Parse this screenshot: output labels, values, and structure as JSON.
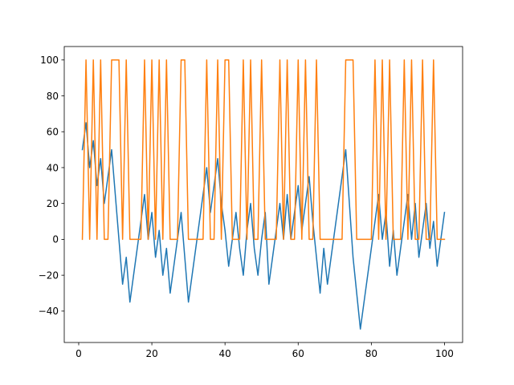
{
  "chart_data": {
    "type": "line",
    "title": "",
    "xlabel": "",
    "ylabel": "",
    "xlim": [
      -3.95,
      104.95
    ],
    "ylim": [
      -57.5,
      107.5
    ],
    "xticks": [
      0,
      20,
      40,
      60,
      80,
      100
    ],
    "yticks": [
      -40,
      -20,
      0,
      20,
      40,
      60,
      80,
      100
    ],
    "grid": false,
    "legend": "none",
    "series": [
      {
        "color": "#1f77b4",
        "x": [
          1,
          2,
          3,
          4,
          5,
          6,
          7,
          8,
          9,
          10,
          11,
          12,
          13,
          14,
          15,
          16,
          17,
          18,
          19,
          20,
          21,
          22,
          23,
          24,
          25,
          26,
          27,
          28,
          29,
          30,
          31,
          32,
          33,
          34,
          35,
          36,
          37,
          38,
          39,
          40,
          41,
          42,
          43,
          44,
          45,
          46,
          47,
          48,
          49,
          50,
          51,
          52,
          53,
          54,
          55,
          56,
          57,
          58,
          59,
          60,
          61,
          62,
          63,
          64,
          65,
          66,
          67,
          68,
          69,
          70,
          71,
          72,
          73,
          74,
          75,
          76,
          77,
          78,
          79,
          80,
          81,
          82,
          83,
          84,
          85,
          86,
          87,
          88,
          89,
          90,
          91,
          92,
          93,
          94,
          95,
          96,
          97,
          98,
          99,
          100
        ],
        "values": [
          50,
          65,
          40,
          55,
          30,
          45,
          20,
          35,
          50,
          25,
          0,
          -25,
          -10,
          -35,
          -20,
          -5,
          10,
          25,
          0,
          15,
          -10,
          5,
          -20,
          -5,
          -30,
          -15,
          0,
          15,
          -10,
          -35,
          -20,
          -5,
          10,
          25,
          40,
          15,
          30,
          45,
          20,
          5,
          -15,
          0,
          15,
          -5,
          -20,
          5,
          20,
          -5,
          -20,
          0,
          15,
          -25,
          -10,
          5,
          20,
          0,
          25,
          0,
          15,
          30,
          5,
          20,
          35,
          10,
          -10,
          -30,
          -5,
          -25,
          -10,
          5,
          20,
          35,
          50,
          20,
          -10,
          -30,
          -50,
          -35,
          -20,
          -5,
          10,
          25,
          0,
          15,
          -15,
          5,
          -20,
          -5,
          10,
          25,
          0,
          20,
          -10,
          5,
          20,
          -5,
          10,
          -15,
          0,
          15
        ]
      },
      {
        "color": "#ff7f0e",
        "x": [
          1,
          2,
          3,
          4,
          5,
          6,
          7,
          8,
          9,
          10,
          11,
          12,
          13,
          14,
          15,
          16,
          17,
          18,
          19,
          20,
          21,
          22,
          23,
          24,
          25,
          26,
          27,
          28,
          29,
          30,
          31,
          32,
          33,
          34,
          35,
          36,
          37,
          38,
          39,
          40,
          41,
          42,
          43,
          44,
          45,
          46,
          47,
          48,
          49,
          50,
          51,
          52,
          53,
          54,
          55,
          56,
          57,
          58,
          59,
          60,
          61,
          62,
          63,
          64,
          65,
          66,
          67,
          68,
          69,
          70,
          71,
          72,
          73,
          74,
          75,
          76,
          77,
          78,
          79,
          80,
          81,
          82,
          83,
          84,
          85,
          86,
          87,
          88,
          89,
          90,
          91,
          92,
          93,
          94,
          95,
          96,
          97,
          98,
          99,
          100
        ],
        "values": [
          0,
          100,
          0,
          100,
          0,
          100,
          0,
          0,
          100,
          100,
          100,
          0,
          100,
          0,
          0,
          0,
          0,
          100,
          0,
          100,
          0,
          100,
          0,
          100,
          0,
          0,
          0,
          100,
          100,
          0,
          0,
          0,
          0,
          0,
          100,
          0,
          0,
          100,
          0,
          100,
          100,
          0,
          0,
          0,
          100,
          0,
          100,
          0,
          0,
          100,
          0,
          0,
          0,
          0,
          100,
          0,
          100,
          0,
          0,
          100,
          0,
          100,
          0,
          0,
          100,
          0,
          0,
          0,
          0,
          0,
          0,
          0,
          100,
          100,
          100,
          0,
          0,
          0,
          0,
          0,
          100,
          0,
          100,
          0,
          100,
          0,
          0,
          0,
          100,
          0,
          100,
          0,
          0,
          100,
          0,
          0,
          100,
          0,
          0,
          0
        ]
      }
    ]
  }
}
